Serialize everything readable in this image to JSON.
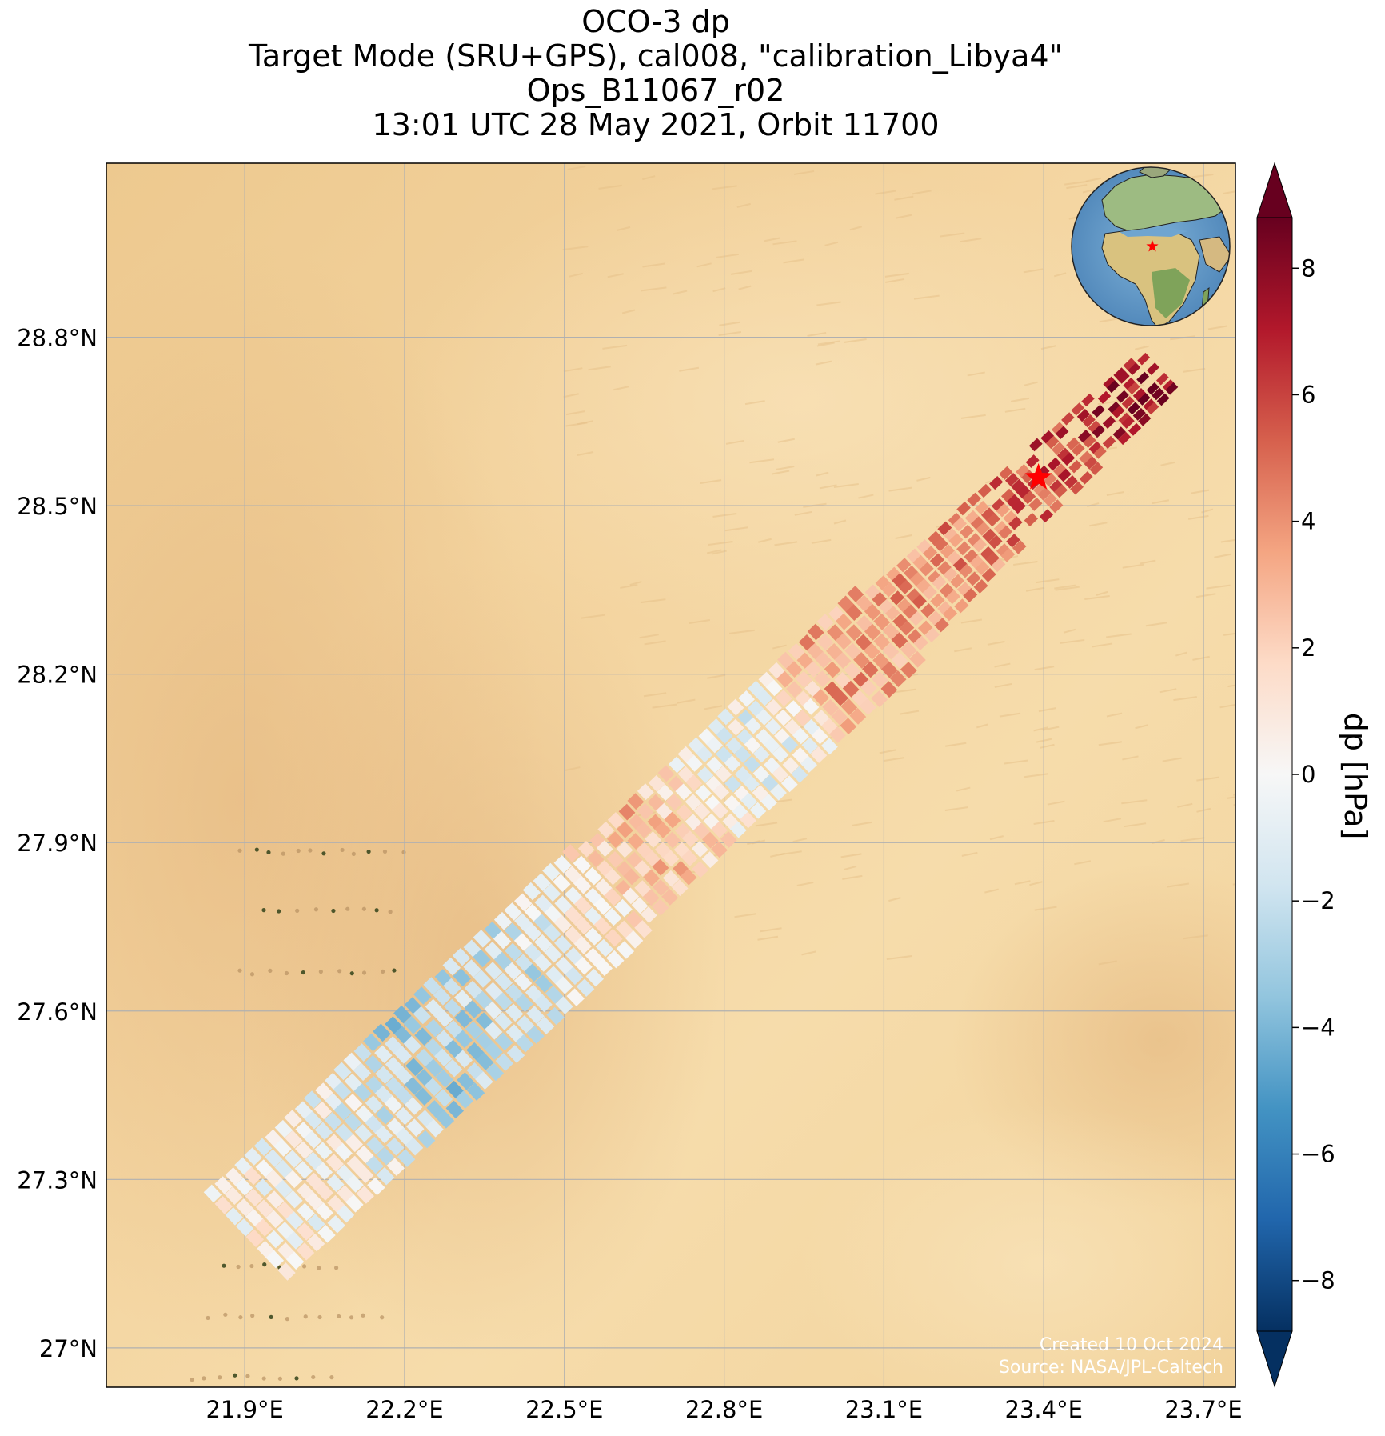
{
  "title": {
    "line1": "OCO-3 dp",
    "line2": "Target Mode (SRU+GPS), cal008, \"calibration_Libya4\"",
    "line3": "Ops_B11067_r02",
    "line4": "13:01 UTC 28 May 2021, Orbit 11700"
  },
  "map": {
    "lon_range": [
      21.64,
      23.76
    ],
    "lat_range": [
      26.93,
      29.11
    ],
    "lon_ticks": [
      {
        "value": 21.9,
        "label": "21.9°E"
      },
      {
        "value": 22.2,
        "label": "22.2°E"
      },
      {
        "value": 22.5,
        "label": "22.5°E"
      },
      {
        "value": 22.8,
        "label": "22.8°E"
      },
      {
        "value": 23.1,
        "label": "23.1°E"
      },
      {
        "value": 23.4,
        "label": "23.4°E"
      },
      {
        "value": 23.7,
        "label": "23.7°E"
      }
    ],
    "lat_ticks": [
      {
        "value": 28.8,
        "label": "28.8°N"
      },
      {
        "value": 28.5,
        "label": "28.5°N"
      },
      {
        "value": 28.2,
        "label": "28.2°N"
      },
      {
        "value": 27.9,
        "label": "27.9°N"
      },
      {
        "value": 27.6,
        "label": "27.6°N"
      },
      {
        "value": 27.3,
        "label": "27.3°N"
      },
      {
        "value": 27.0,
        "label": "27°N"
      }
    ],
    "grid": true,
    "background": "desert-satellite-imagery",
    "target": {
      "name": "calibration_Libya4",
      "lon": 23.39,
      "lat": 28.55,
      "marker": "red-star"
    },
    "swath": {
      "start": {
        "lon": 21.9,
        "lat": 27.2
      },
      "end": {
        "lon": 23.62,
        "lat": 28.75
      },
      "dp_profile": [
        {
          "t": 0.0,
          "dp": 0.5
        },
        {
          "t": 0.1,
          "dp": -0.5
        },
        {
          "t": 0.2,
          "dp": -3.0
        },
        {
          "t": 0.3,
          "dp": -2.0
        },
        {
          "t": 0.4,
          "dp": 1.5
        },
        {
          "t": 0.45,
          "dp": 3.0
        },
        {
          "t": 0.52,
          "dp": -0.5
        },
        {
          "t": 0.58,
          "dp": -0.8
        },
        {
          "t": 0.63,
          "dp": 3.5
        },
        {
          "t": 0.72,
          "dp": 3.8
        },
        {
          "t": 0.8,
          "dp": 4.5
        },
        {
          "t": 0.88,
          "dp": 6.0
        },
        {
          "t": 1.0,
          "dp": 8.0
        }
      ]
    },
    "inset_globe": {
      "center_lon": 20,
      "center_lat": 25,
      "marker": "red-star"
    }
  },
  "colorbar": {
    "label": "dp [hPa]",
    "vmin": -8.8,
    "vmax": 8.8,
    "extend": "both",
    "colormap": "RdBu_r",
    "ticks": [
      {
        "value": 8,
        "label": "8"
      },
      {
        "value": 6,
        "label": "6"
      },
      {
        "value": 4,
        "label": "4"
      },
      {
        "value": 2,
        "label": "2"
      },
      {
        "value": 0,
        "label": "0"
      },
      {
        "value": -2,
        "label": "−2"
      },
      {
        "value": -4,
        "label": "−4"
      },
      {
        "value": -6,
        "label": "−6"
      },
      {
        "value": -8,
        "label": "−8"
      }
    ]
  },
  "credits": {
    "created": "Created 10 Oct 2024",
    "source": "Source: NASA/JPL-Caltech"
  },
  "colors": {
    "star": "#ff0000",
    "grid": "#b0b0b0",
    "sand": "#f3d5a0"
  }
}
